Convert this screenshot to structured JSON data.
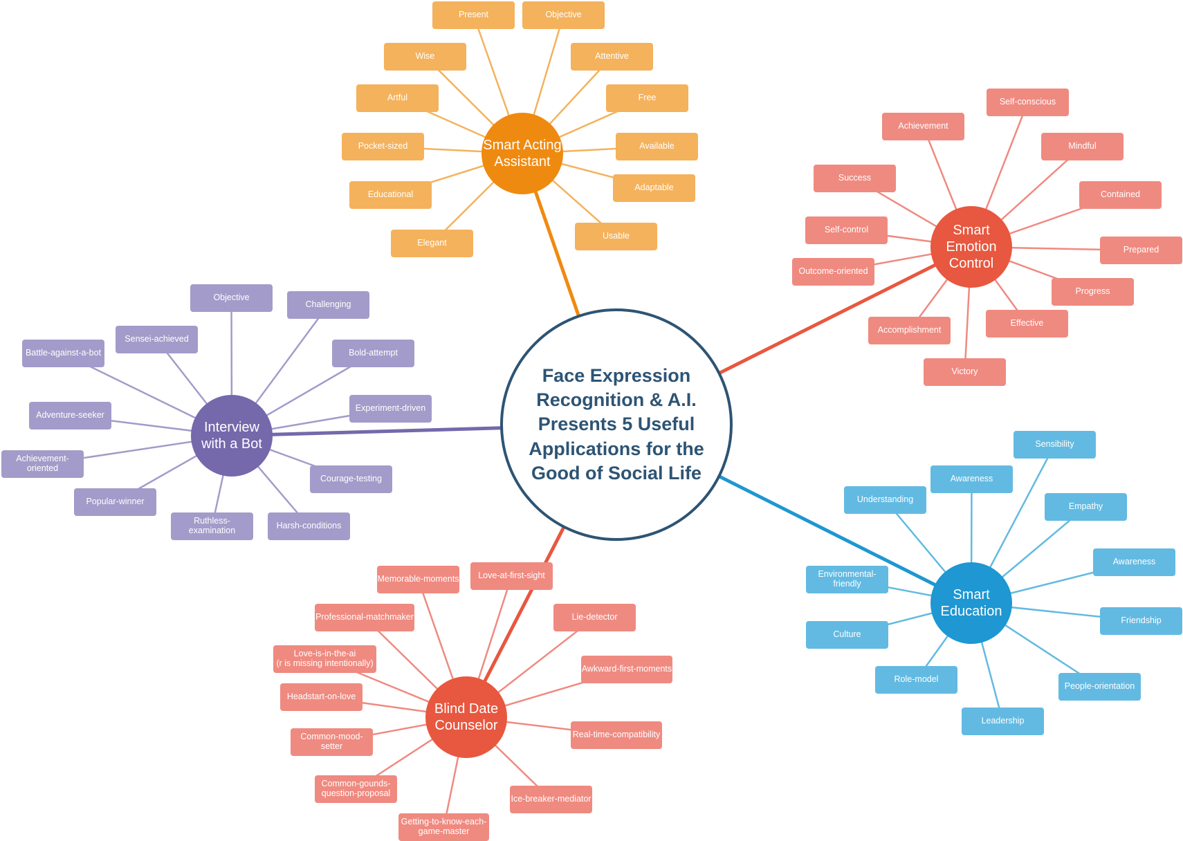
{
  "center": {
    "text": "Face Expression\nRecognition & A.I.\nPresents 5 Useful\nApplications for the\nGood of Social Life",
    "color": "#2d5474"
  },
  "branches": [
    {
      "id": "smart-acting-assistant",
      "label": "Smart Acting\nAssistant",
      "hub_color": "#ef8a10",
      "leaf_color": "#f4b25c",
      "leaves": [
        "Present",
        "Objective",
        "Wise",
        "Attentive",
        "Artful",
        "Free",
        "Pocket-sized",
        "Available",
        "Educational",
        "Adaptable",
        "Elegant",
        "Usable"
      ]
    },
    {
      "id": "smart-emotion-control",
      "label": "Smart\nEmotion\nControl",
      "hub_color": "#e8573f",
      "leaf_color": "#ef8a80",
      "leaves": [
        "Self-conscious",
        "Achievement",
        "Mindful",
        "Success",
        "Contained",
        "Self-control",
        "Prepared",
        "Outcome-oriented",
        "Progress",
        "Accomplishment",
        "Effective",
        "Victory"
      ]
    },
    {
      "id": "interview-with-a-bot",
      "label": "Interview\nwith a Bot",
      "hub_color": "#7568ab",
      "leaf_color": "#a39bc9",
      "leaves": [
        "Objective",
        "Challenging",
        "Sensei-achieved",
        "Battle-against-a-bot",
        "Bold-attempt",
        "Experiment-driven",
        "Adventure-seeker",
        "Achievement-oriented",
        "Courage-testing",
        "Popular-winner",
        "Ruthless-examination",
        "Harsh-conditions"
      ]
    },
    {
      "id": "smart-education",
      "label": "Smart\nEducation",
      "hub_color": "#1e97d2",
      "leaf_color": "#62bae2",
      "leaves": [
        "Sensibility",
        "Awareness",
        "Understanding",
        "Empathy",
        "Awareness",
        "Environmental-friendly",
        "Culture",
        "Friendship",
        "Role-model",
        "People-orientation",
        "Leadership"
      ]
    },
    {
      "id": "blind-date-counselor",
      "label": "Blind Date\nCounselor",
      "hub_color": "#e8573f",
      "leaf_color": "#ef8a80",
      "leaves": [
        "Memorable-moments",
        "Love-at-first-sight",
        "Professional-matchmaker",
        "Lie-detector",
        "Love-is-in-the-ai\n(r is missing intentionally)",
        "Awkward-first-moments",
        "Headstart-on-love",
        "Common-mood-setter",
        "Real-time-compatibility",
        "Common-gounds-\nquestion-proposal",
        "Ice-breaker-mediator",
        "Getting-to-know-each-\ngame-master"
      ]
    }
  ]
}
